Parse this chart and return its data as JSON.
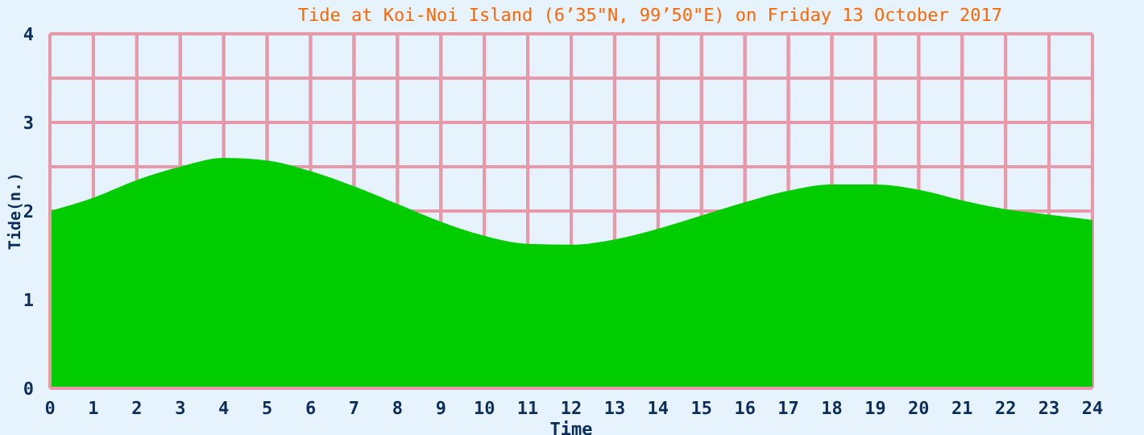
{
  "chart_data": {
    "type": "area",
    "title": "Tide at Koi-Noi Island (6’35\"N, 99’50\"E) on Friday 13 October 2017",
    "xlabel": "Time",
    "ylabel": "Tide(n.)",
    "x": [
      0,
      1,
      2,
      3,
      4,
      5,
      6,
      7,
      8,
      9,
      10,
      11,
      12,
      13,
      14,
      15,
      16,
      17,
      18,
      19,
      20,
      21,
      22,
      23,
      24
    ],
    "series": [
      {
        "color": "#00cc00",
        "values": [
          2.0,
          2.15,
          2.35,
          2.5,
          2.6,
          2.57,
          2.45,
          2.28,
          2.08,
          1.88,
          1.72,
          1.63,
          1.62,
          1.68,
          1.8,
          1.95,
          2.1,
          2.23,
          2.3,
          2.3,
          2.24,
          2.12,
          2.02,
          1.96,
          1.9
        ]
      }
    ],
    "xlim": [
      0,
      24
    ],
    "xticks": [
      0,
      1,
      2,
      3,
      4,
      5,
      6,
      7,
      8,
      9,
      10,
      11,
      12,
      13,
      14,
      15,
      16,
      17,
      18,
      19,
      20,
      21,
      22,
      23,
      24
    ],
    "ylim": [
      0,
      4
    ],
    "yticks": [
      0,
      {
        "value": 0.5,
        "label": null
      },
      1,
      {
        "value": 1.5,
        "label": null
      },
      2,
      {
        "value": 2.5,
        "label": null
      },
      3,
      {
        "value": 3.5,
        "label": null
      },
      4
    ],
    "grid": true,
    "legend": false
  }
}
